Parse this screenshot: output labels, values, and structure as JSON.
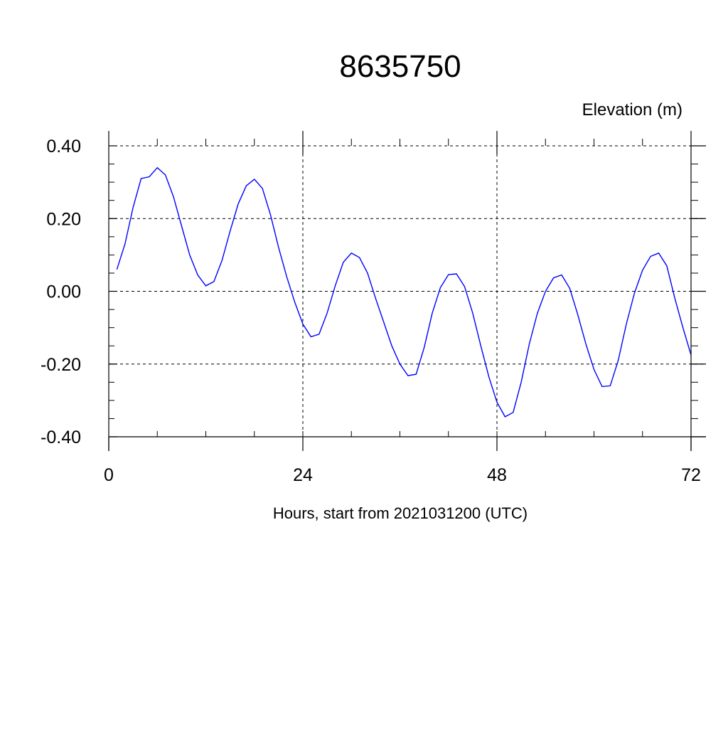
{
  "chart_data": {
    "type": "line",
    "title": "8635750",
    "ylabel": "Elevation (m)",
    "xlabel": "Hours, start from 2021031200 (UTC)",
    "xlim": [
      0,
      72
    ],
    "ylim": [
      -0.4,
      0.4
    ],
    "x_ticks": [
      0,
      24,
      48,
      72
    ],
    "x_tick_labels": [
      "0",
      "24",
      "48",
      "72"
    ],
    "y_ticks": [
      -0.4,
      -0.2,
      0.0,
      0.2,
      0.4
    ],
    "y_tick_labels": [
      "-0.40",
      "-0.20",
      "0.00",
      "0.20",
      "0.40"
    ],
    "grid": true,
    "series": [
      {
        "color": "#0000ff",
        "x": [
          1,
          2,
          3,
          4,
          5,
          6,
          7,
          8,
          9,
          10,
          11,
          12,
          13,
          14,
          15,
          16,
          17,
          18,
          19,
          20,
          21,
          22,
          23,
          24,
          25,
          26,
          27,
          28,
          29,
          30,
          31,
          32,
          33,
          34,
          35,
          36,
          37,
          38,
          39,
          40,
          41,
          42,
          43,
          44,
          45,
          46,
          47,
          48,
          49,
          50,
          51,
          52,
          53,
          54,
          55,
          56,
          57,
          58,
          59,
          60,
          61,
          62,
          63,
          64,
          65,
          66,
          67,
          68,
          69,
          70,
          71,
          72
        ],
        "y": [
          0.06,
          0.13,
          0.23,
          0.31,
          0.315,
          0.34,
          0.32,
          0.26,
          0.18,
          0.1,
          0.045,
          0.015,
          0.027,
          0.085,
          0.165,
          0.24,
          0.29,
          0.308,
          0.283,
          0.21,
          0.12,
          0.04,
          -0.03,
          -0.09,
          -0.125,
          -0.118,
          -0.06,
          0.015,
          0.08,
          0.105,
          0.093,
          0.05,
          -0.02,
          -0.085,
          -0.15,
          -0.2,
          -0.232,
          -0.228,
          -0.155,
          -0.06,
          0.01,
          0.046,
          0.048,
          0.013,
          -0.06,
          -0.15,
          -0.235,
          -0.305,
          -0.345,
          -0.333,
          -0.25,
          -0.145,
          -0.06,
          0.0,
          0.037,
          0.045,
          0.008,
          -0.065,
          -0.145,
          -0.215,
          -0.262,
          -0.26,
          -0.19,
          -0.09,
          -0.005,
          0.058,
          0.096,
          0.105,
          0.07,
          -0.02,
          -0.1,
          -0.175
        ]
      }
    ]
  }
}
